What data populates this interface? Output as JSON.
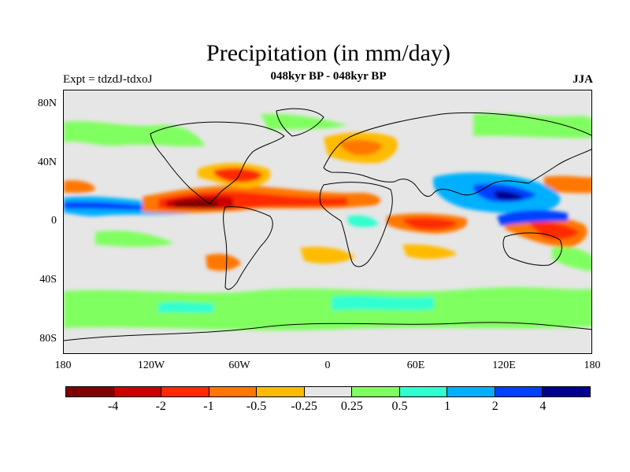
{
  "title": "Precipitation (in mm/day)",
  "subtitle": "048kyr BP - 048kyr BP",
  "left_label": "Expt = tdzdJ-tdxoJ",
  "season": "JJA",
  "y_axis_labels": [
    "80N",
    "40N",
    "0",
    "40S",
    "80S"
  ],
  "x_axis_labels": [
    "180",
    "120W",
    "60W",
    "0",
    "60E",
    "120E",
    "180"
  ],
  "colorbar": {
    "colors": [
      "#800000",
      "#cc0000",
      "#ff2a00",
      "#ff7700",
      "#ffbb00",
      "#e6e6e6",
      "#80ff60",
      "#30ffd0",
      "#00b0ff",
      "#0040ff",
      "#000090"
    ],
    "labels": [
      "-4",
      "-2",
      "-1",
      "-0.5",
      "-0.25",
      "0.25",
      "0.5",
      "1",
      "2",
      "4"
    ]
  },
  "chart_data": {
    "type": "heatmap",
    "title": "Precipitation (in mm/day)",
    "subtitle": "048kyr BP - 048kyr BP",
    "projection": "cylindrical equidistant, global",
    "x_range": [
      -180,
      180
    ],
    "y_range": [
      -90,
      90
    ],
    "levels": [
      -4,
      -2,
      -1,
      -0.5,
      -0.25,
      0.25,
      0.5,
      1,
      2,
      4
    ],
    "units": "mm/day",
    "season": "JJA"
  }
}
